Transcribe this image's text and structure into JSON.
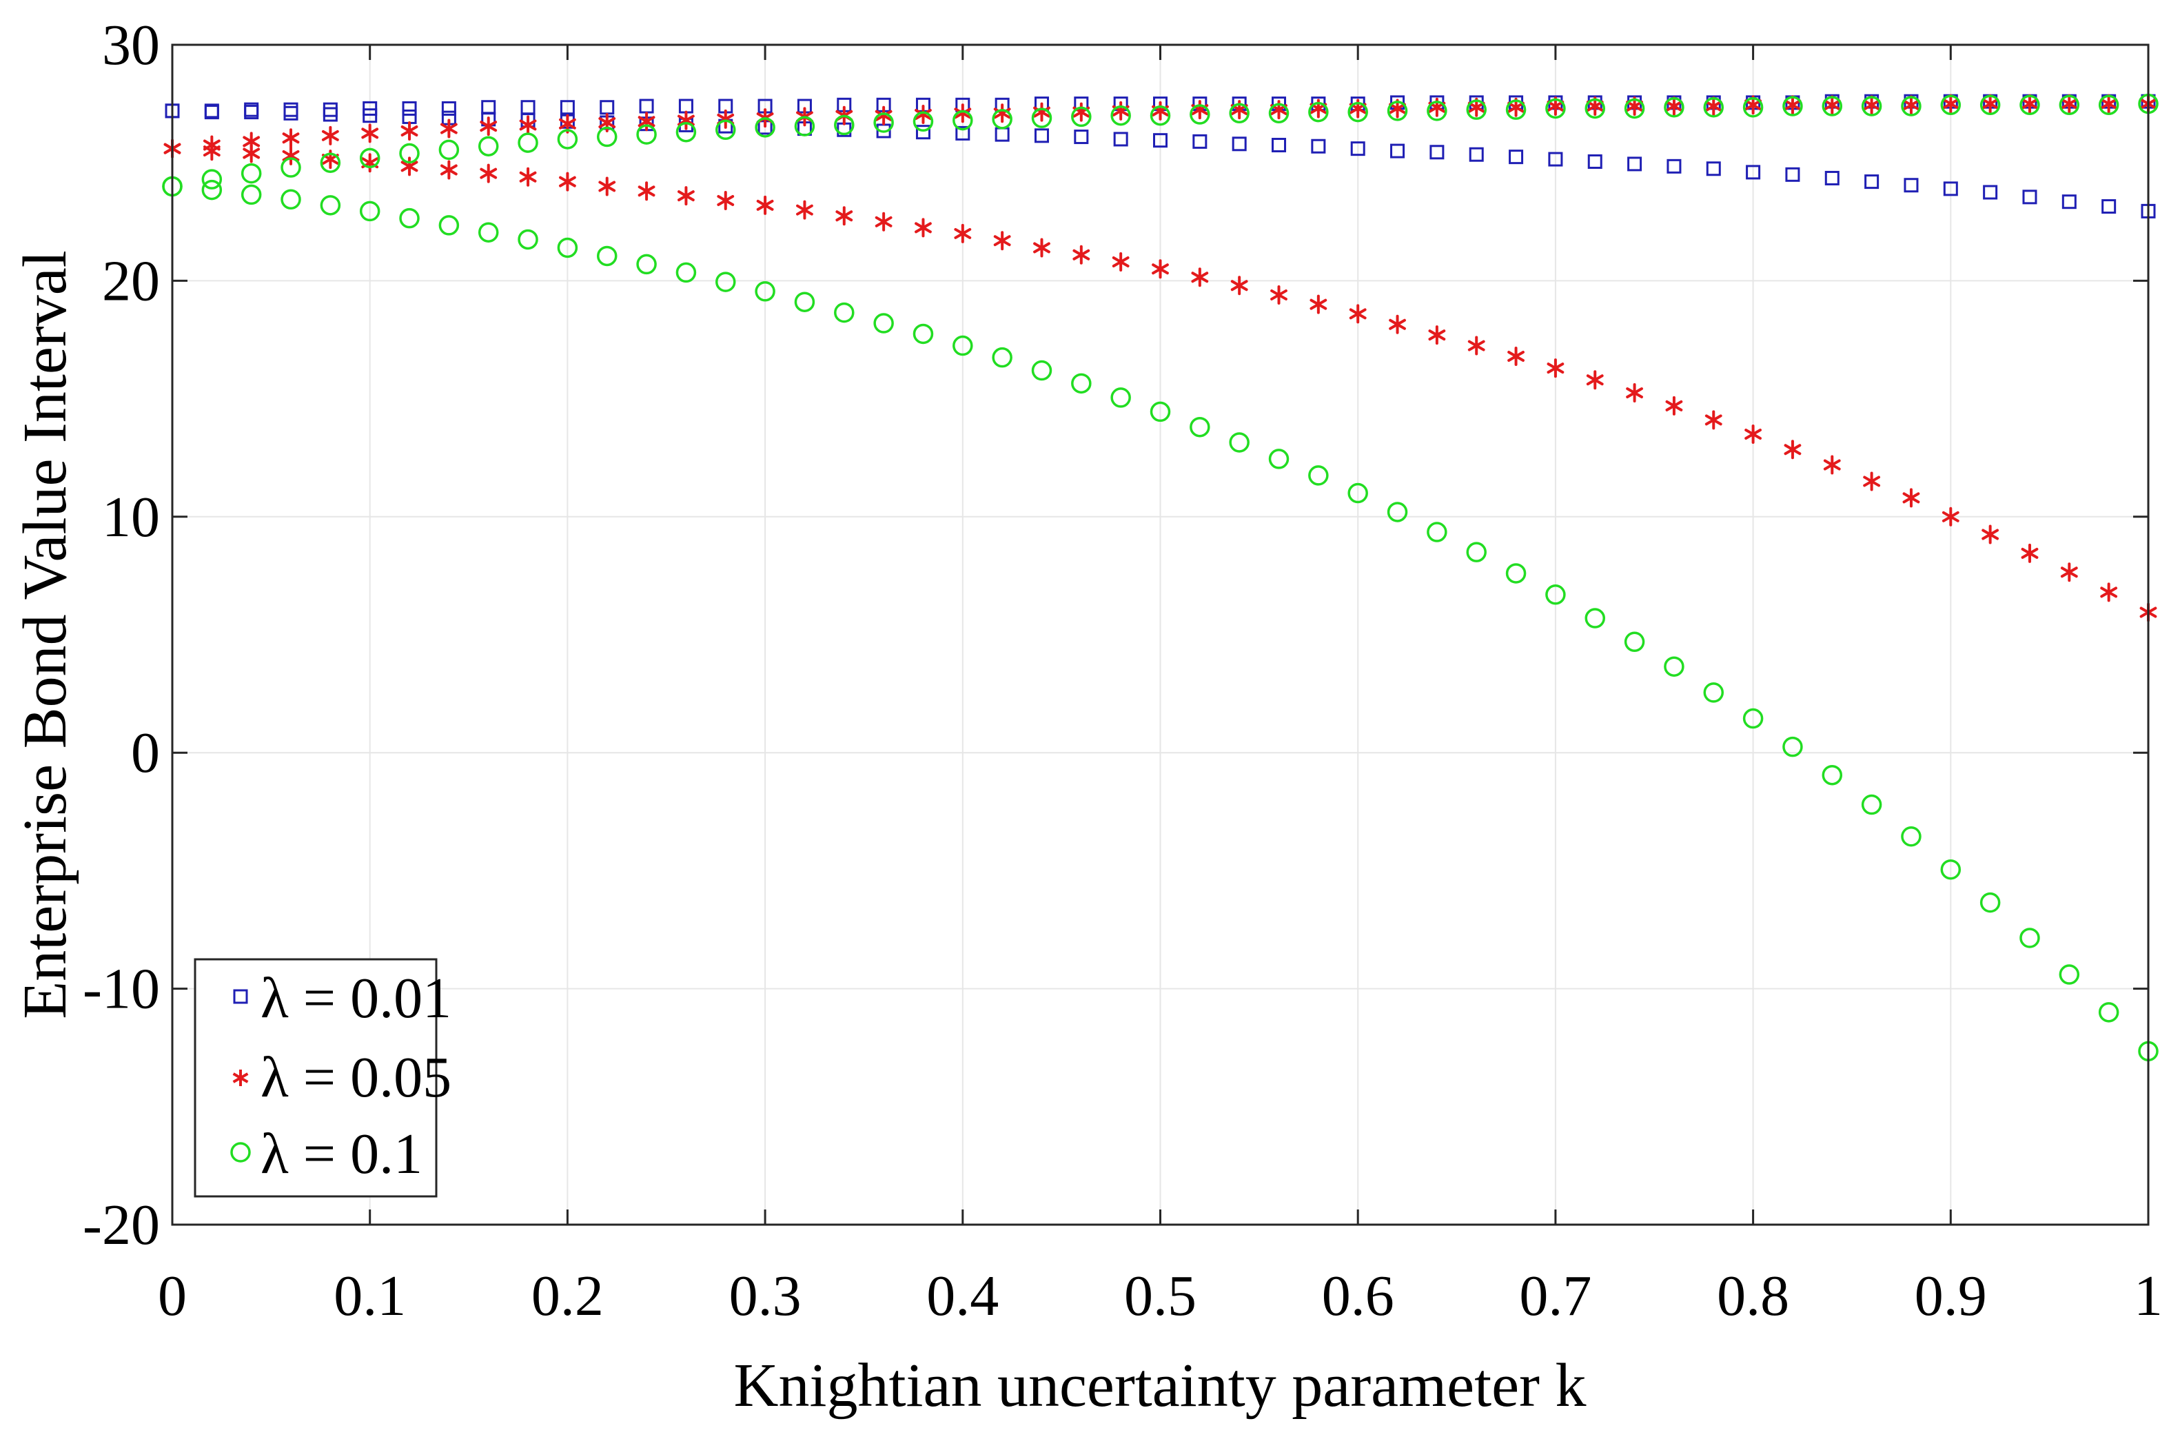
{
  "chart_data": {
    "type": "scatter",
    "title": "",
    "xlabel": "Knightian uncertainty parameter k",
    "ylabel": "Enterprise Bond Value Interval",
    "xlim": [
      0,
      1
    ],
    "ylim": [
      -20,
      30
    ],
    "grid": true,
    "legend_position": "bottom-left",
    "x_ticks": [
      "0",
      "0.1",
      "0.2",
      "0.3",
      "0.4",
      "0.5",
      "0.6",
      "0.7",
      "0.8",
      "0.9",
      "1"
    ],
    "y_ticks": [
      "-20",
      "-10",
      "0",
      "10",
      "20",
      "30"
    ],
    "x_tick_values": [
      0,
      0.1,
      0.2,
      0.3,
      0.4,
      0.5,
      0.6,
      0.7,
      0.8,
      0.9,
      1
    ],
    "y_tick_values": [
      -20,
      -10,
      0,
      10,
      20,
      30
    ],
    "x": [
      0,
      0.02,
      0.04,
      0.06,
      0.08,
      0.1,
      0.12,
      0.14,
      0.16,
      0.18,
      0.2,
      0.22,
      0.24,
      0.26,
      0.28,
      0.3,
      0.32,
      0.34,
      0.36,
      0.38,
      0.4,
      0.42,
      0.44,
      0.46,
      0.48,
      0.5,
      0.52,
      0.54,
      0.56,
      0.58,
      0.6,
      0.62,
      0.64,
      0.66,
      0.68,
      0.7,
      0.72,
      0.74,
      0.76,
      0.78,
      0.8,
      0.82,
      0.84,
      0.86,
      0.88,
      0.9,
      0.92,
      0.94,
      0.96,
      0.98,
      1
    ],
    "series": [
      {
        "name": "λ = 0.01",
        "marker": "square",
        "color": "#1f1fb4",
        "upper": [
          27.2,
          27.2,
          27.25,
          27.25,
          27.25,
          27.3,
          27.3,
          27.3,
          27.35,
          27.35,
          27.35,
          27.35,
          27.4,
          27.4,
          27.4,
          27.4,
          27.4,
          27.45,
          27.45,
          27.45,
          27.45,
          27.45,
          27.5,
          27.5,
          27.5,
          27.5,
          27.5,
          27.5,
          27.5,
          27.5,
          27.5,
          27.55,
          27.55,
          27.55,
          27.55,
          27.55,
          27.55,
          27.55,
          27.55,
          27.55,
          27.55,
          27.55,
          27.6,
          27.6,
          27.6,
          27.6,
          27.6,
          27.6,
          27.6,
          27.6,
          27.6
        ],
        "lower": [
          27.2,
          27.15,
          27.15,
          27.1,
          27.05,
          27.0,
          26.95,
          26.9,
          26.85,
          26.8,
          26.75,
          26.7,
          26.65,
          26.6,
          26.55,
          26.5,
          26.45,
          26.4,
          26.35,
          26.3,
          26.25,
          26.2,
          26.15,
          26.1,
          26.0,
          25.95,
          25.9,
          25.8,
          25.75,
          25.7,
          25.6,
          25.5,
          25.45,
          25.35,
          25.25,
          25.15,
          25.05,
          24.95,
          24.85,
          24.75,
          24.6,
          24.5,
          24.35,
          24.2,
          24.05,
          23.9,
          23.75,
          23.55,
          23.35,
          23.15,
          22.95
        ]
      },
      {
        "name": "λ = 0.05",
        "marker": "asterisk",
        "color": "#e41a1c",
        "upper": [
          25.6,
          25.75,
          25.9,
          26.05,
          26.15,
          26.25,
          26.35,
          26.45,
          26.55,
          26.6,
          26.65,
          26.7,
          26.75,
          26.8,
          26.85,
          26.9,
          26.95,
          27.0,
          27.0,
          27.05,
          27.1,
          27.1,
          27.15,
          27.15,
          27.2,
          27.2,
          27.25,
          27.25,
          27.25,
          27.3,
          27.3,
          27.3,
          27.35,
          27.35,
          27.35,
          27.4,
          27.4,
          27.4,
          27.4,
          27.4,
          27.45,
          27.45,
          27.45,
          27.45,
          27.45,
          27.5,
          27.5,
          27.5,
          27.5,
          27.5,
          27.5
        ],
        "lower": [
          25.6,
          25.5,
          25.4,
          25.3,
          25.15,
          25.0,
          24.85,
          24.7,
          24.55,
          24.4,
          24.2,
          24.0,
          23.8,
          23.6,
          23.4,
          23.2,
          23.0,
          22.75,
          22.5,
          22.25,
          22.0,
          21.7,
          21.4,
          21.1,
          20.8,
          20.5,
          20.15,
          19.8,
          19.4,
          19.0,
          18.6,
          18.15,
          17.7,
          17.25,
          16.8,
          16.3,
          15.8,
          15.25,
          14.7,
          14.1,
          13.5,
          12.85,
          12.2,
          11.5,
          10.8,
          10.0,
          9.25,
          8.45,
          7.65,
          6.8,
          5.95
        ]
      },
      {
        "name": "λ = 0.1",
        "marker": "circle",
        "color": "#22dd22",
        "upper": [
          24.0,
          24.3,
          24.55,
          24.8,
          25.0,
          25.2,
          25.4,
          25.55,
          25.7,
          25.85,
          26.0,
          26.1,
          26.2,
          26.3,
          26.4,
          26.5,
          26.55,
          26.6,
          26.7,
          26.75,
          26.8,
          26.85,
          26.9,
          26.95,
          27.0,
          27.0,
          27.05,
          27.1,
          27.1,
          27.15,
          27.15,
          27.2,
          27.2,
          27.25,
          27.25,
          27.3,
          27.3,
          27.3,
          27.35,
          27.35,
          27.35,
          27.4,
          27.4,
          27.4,
          27.4,
          27.45,
          27.45,
          27.45,
          27.45,
          27.45,
          27.5
        ],
        "lower": [
          24.0,
          23.85,
          23.65,
          23.45,
          23.2,
          22.95,
          22.65,
          22.35,
          22.05,
          21.75,
          21.4,
          21.05,
          20.7,
          20.35,
          19.95,
          19.55,
          19.1,
          18.65,
          18.2,
          17.75,
          17.25,
          16.75,
          16.2,
          15.65,
          15.05,
          14.45,
          13.8,
          13.15,
          12.45,
          11.75,
          11.0,
          10.2,
          9.35,
          8.5,
          7.6,
          6.7,
          5.7,
          4.7,
          3.65,
          2.55,
          1.45,
          0.25,
          -0.95,
          -2.2,
          -3.55,
          -4.95,
          -6.35,
          -7.85,
          -9.4,
          -11.0,
          -12.65
        ]
      }
    ]
  }
}
